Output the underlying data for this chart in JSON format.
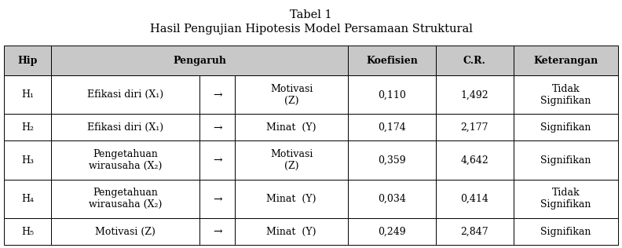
{
  "title1": "Tabel 1",
  "title2": "Hasil Pengujian Hipotesis Model Persamaan Struktural",
  "rows": [
    {
      "hip": "H₁",
      "from": "Efikasi diri (X₁)",
      "arrow": "→",
      "to": "Motivasi\n(Z)",
      "koefisien": "0,110",
      "cr": "1,492",
      "ket": "Tidak\nSignifikan",
      "tall": true
    },
    {
      "hip": "H₂",
      "from": "Efikasi diri (X₁)",
      "arrow": "→",
      "to": "Minat  (Y)",
      "koefisien": "0,174",
      "cr": "2,177",
      "ket": "Signifikan",
      "tall": false
    },
    {
      "hip": "H₃",
      "from": "Pengetahuan\nwirausaha (X₂)",
      "arrow": "→",
      "to": "Motivasi\n(Z)",
      "koefisien": "0,359",
      "cr": "4,642",
      "ket": "Signifikan",
      "tall": true
    },
    {
      "hip": "H₄",
      "from": "Pengetahuan\nwirausaha (X₂)",
      "arrow": "→",
      "to": "Minat  (Y)",
      "koefisien": "0,034",
      "cr": "0,414",
      "ket": "Tidak\nSignifikan",
      "tall": true
    },
    {
      "hip": "H₅",
      "from": "Motivasi (Z)",
      "arrow": "→",
      "to": "Minat  (Y)",
      "koefisien": "0,249",
      "cr": "2,847",
      "ket": "Signifikan",
      "tall": false
    }
  ],
  "header_bg": "#c8c8c8",
  "cell_bg": "#ffffff",
  "border_color": "#000000",
  "font_size": 9.0,
  "title_font_size": 10.5,
  "fig_width": 7.92,
  "fig_height": 3.16,
  "dpi": 100
}
